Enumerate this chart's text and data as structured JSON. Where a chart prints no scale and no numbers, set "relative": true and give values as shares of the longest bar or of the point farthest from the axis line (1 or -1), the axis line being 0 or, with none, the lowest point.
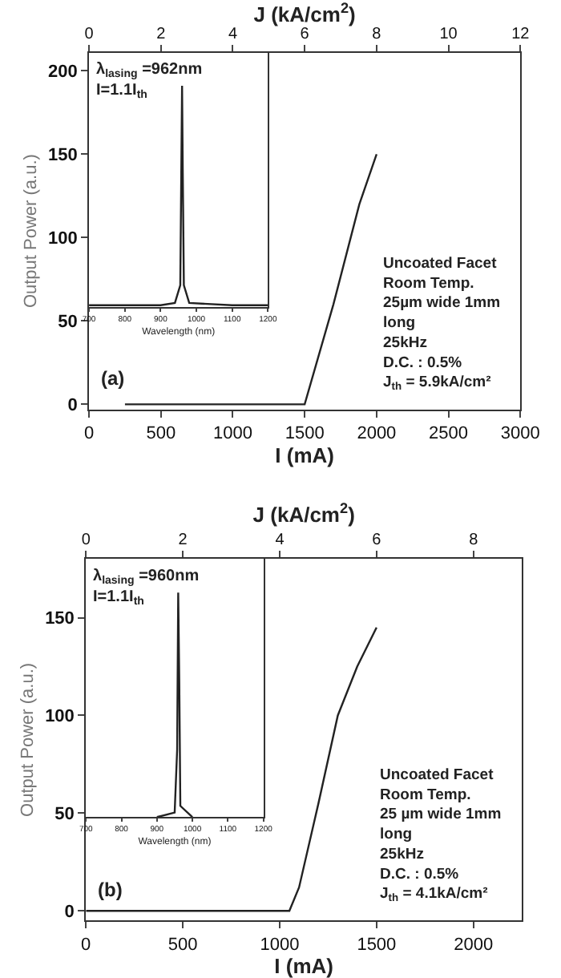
{
  "chart_data": [
    {
      "type": "line",
      "xlabel": "I (mA)",
      "ylabel": "Output Power (a.u.)",
      "x2label": "J (kA/cm$^{2}$)",
      "xlim": [
        0,
        3000
      ],
      "xticks": [
        0,
        500,
        1000,
        1500,
        2000,
        2500,
        3000
      ],
      "ylim": [
        -3,
        211
      ],
      "yticks": [
        0,
        50,
        100,
        150,
        200
      ],
      "x2lim": [
        0,
        12
      ],
      "x2ticks": [
        0,
        2,
        4,
        6,
        8,
        10,
        12
      ],
      "series": [
        {
          "color": "#222222",
          "x": [
            250,
            1500,
            1700,
            1880,
            2000
          ],
          "values": [
            0,
            0,
            60,
            120,
            150
          ]
        }
      ],
      "annotations": [
        "(a)",
        "Uncoated Facet\nRoom Temp.\n25µm wide 1mm\nlong\n25kHz\nD.C. : 0.5%\nJ$_{th}$ = 5.9kA/cm²"
      ]
    },
    {
      "type": "line",
      "relative": true,
      "xlabel": "Wavelength (nm)",
      "xlim": [
        700,
        1200
      ],
      "xticks": [
        700,
        800,
        900,
        1000,
        1100,
        1200
      ],
      "series": [
        {
          "color": "#222222",
          "x": [
            700,
            900,
            940,
            955,
            960,
            962,
            965,
            980,
            1100,
            1200
          ],
          "values": [
            0.01,
            0.01,
            0.02,
            0.1,
            1.0,
            0.6,
            0.1,
            0.02,
            0.01,
            0.01
          ]
        }
      ],
      "annotations": [
        "λ$_{lasing}$ =962nm\nI=1.1I$_{th}$"
      ]
    },
    {
      "type": "line",
      "xlabel": "I (mA)",
      "ylabel": "Output Power (a.u.)",
      "x2label": "J (kA/cm$^{2}$)",
      "xlim": [
        0,
        2250
      ],
      "xticks": [
        0,
        500,
        1000,
        1500,
        2000
      ],
      "ylim": [
        -5,
        180
      ],
      "yticks": [
        0,
        50,
        100,
        150
      ],
      "x2lim": [
        0,
        9
      ],
      "x2ticks": [
        0,
        2,
        4,
        6,
        8
      ],
      "series": [
        {
          "color": "#222222",
          "x": [
            0,
            1050,
            1100,
            1200,
            1300,
            1400,
            1500
          ],
          "values": [
            0,
            0,
            12,
            55,
            100,
            125,
            145
          ]
        }
      ],
      "annotations": [
        "(b)",
        "Uncoated Facet\nRoom Temp.\n25 µm wide 1mm\nlong\n25kHz\nD.C. : 0.5%\nJ$_{th}$ = 4.1kA/cm²"
      ]
    },
    {
      "type": "line",
      "relative": true,
      "xlabel": "Wavelength (nm)",
      "xlim": [
        700,
        1200
      ],
      "xticks": [
        700,
        800,
        900,
        1000,
        1100,
        1200
      ],
      "series": [
        {
          "color": "#222222",
          "x": [
            900,
            950,
            957,
            960,
            963,
            966,
            1000
          ],
          "values": [
            0.0,
            0.02,
            0.3,
            1.0,
            0.6,
            0.05,
            0.0
          ]
        }
      ],
      "annotations": [
        "λ$_{lasing}$ =960nm\nI=1.1I$_{th}$"
      ]
    }
  ]
}
